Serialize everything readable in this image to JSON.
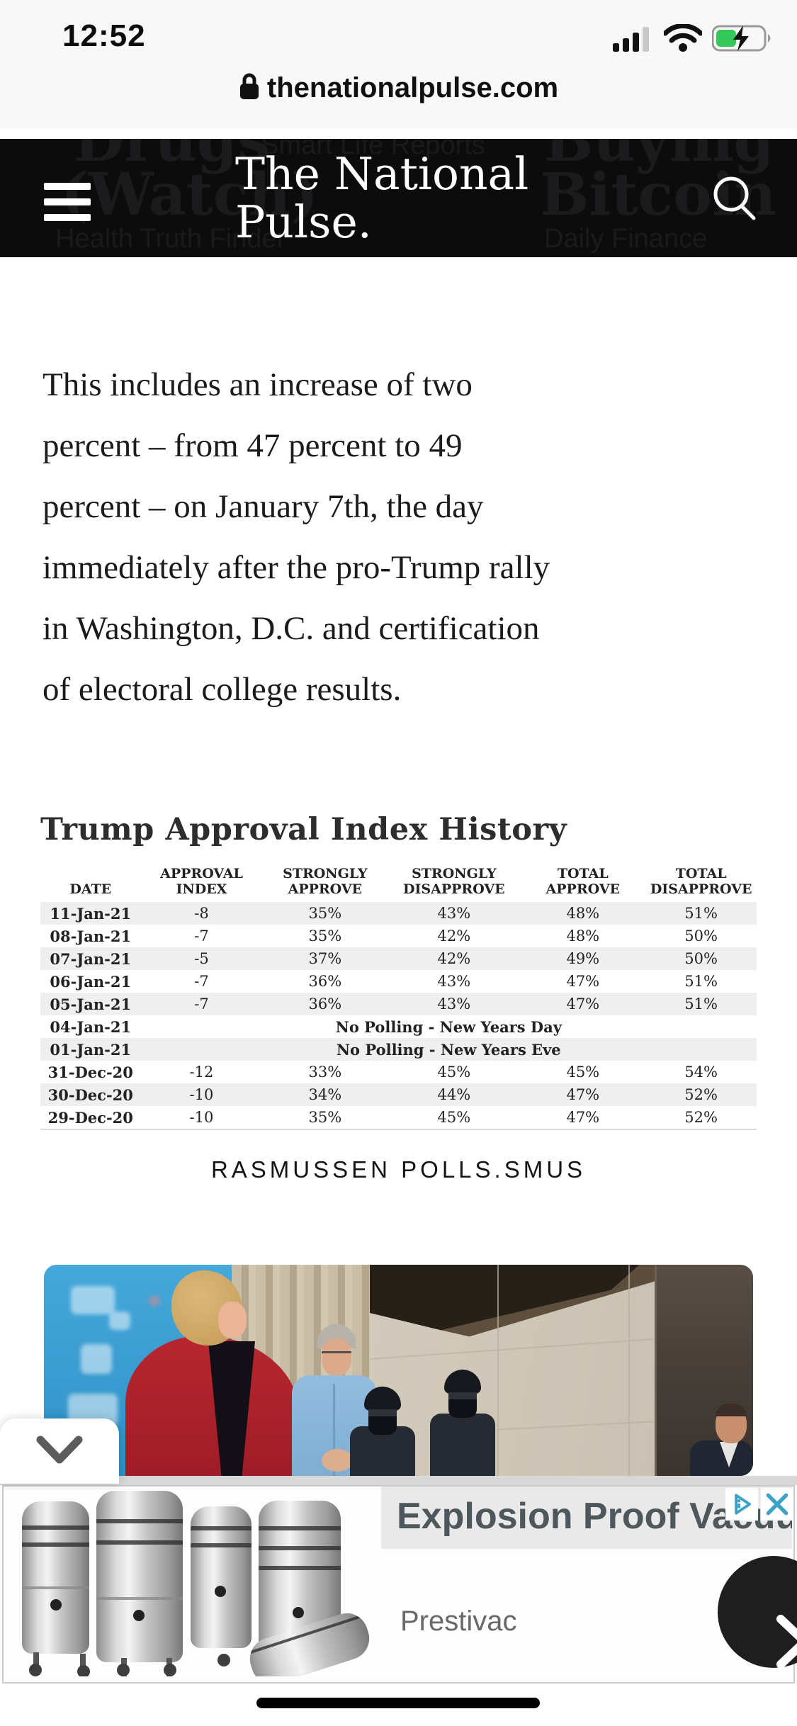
{
  "status_bar": {
    "time": "12:52"
  },
  "url_bar": {
    "domain": "thenationalpulse.com"
  },
  "header": {
    "title_line1": "The National",
    "title_line2": "Pulse.",
    "background_items": {
      "drugs": "Drugs",
      "watch": "(Watch)",
      "smart": "Smart Life Reports",
      "buying": "Buying",
      "bitcoin": "Bitcoin",
      "health": "Health Truth Finder",
      "daily": "Daily Finance"
    }
  },
  "article": {
    "lines": [
      "This includes an increase of two",
      "percent – from 47 percent to 49",
      "percent – on January 7th, the day",
      "immediately after the pro-Trump rally",
      "in Washington, D.C. and certification",
      "of electoral college results."
    ]
  },
  "poll_table": {
    "title": "Trump Approval Index History",
    "columns": [
      "DATE",
      "APPROVAL INDEX",
      "STRONGLY APPROVE",
      "STRONGLY DISAPPROVE",
      "TOTAL APPROVE",
      "TOTAL DISAPPROVE"
    ],
    "rows": [
      {
        "date": "11-Jan-21",
        "values": [
          "-8",
          "35%",
          "43%",
          "48%",
          "51%"
        ]
      },
      {
        "date": "08-Jan-21",
        "values": [
          "-7",
          "35%",
          "42%",
          "48%",
          "50%"
        ]
      },
      {
        "date": "07-Jan-21",
        "values": [
          "-5",
          "37%",
          "42%",
          "49%",
          "50%"
        ]
      },
      {
        "date": "06-Jan-21",
        "values": [
          "-7",
          "36%",
          "43%",
          "47%",
          "51%"
        ]
      },
      {
        "date": "05-Jan-21",
        "values": [
          "-7",
          "36%",
          "43%",
          "47%",
          "51%"
        ]
      },
      {
        "date": "04-Jan-21",
        "note": "No Polling - New Years Day"
      },
      {
        "date": "01-Jan-21",
        "note": "No Polling - New Years Eve"
      },
      {
        "date": "31-Dec-20",
        "values": [
          "-12",
          "33%",
          "45%",
          "45%",
          "54%"
        ]
      },
      {
        "date": "30-Dec-20",
        "values": [
          "-10",
          "34%",
          "44%",
          "47%",
          "52%"
        ]
      },
      {
        "date": "29-Dec-20",
        "values": [
          "-10",
          "35%",
          "45%",
          "47%",
          "52%"
        ]
      }
    ],
    "source_caption": "RASMUSSEN POLLS.SMUS"
  },
  "ad": {
    "headline": "Explosion Proof Vacuum",
    "advertiser": "Prestivac"
  },
  "icons": {
    "status": [
      "cellular-signal-icon",
      "wifi-icon",
      "battery-charging-icon"
    ],
    "url_bar": [
      "lock-icon"
    ],
    "header": [
      "menu-icon",
      "search-icon"
    ],
    "collapse": [
      "chevron-down-icon"
    ],
    "ad": [
      "adchoices-icon",
      "close-icon",
      "chevron-right-icon"
    ]
  },
  "colors": {
    "header_bg": "#0c0c0d",
    "battery_charge_green": "#34c759",
    "table_band": "#efefef",
    "adchoices_blue": "#3ba2c8",
    "photo_backdrop_blue": "#3aa0d4",
    "photo_blazer_red": "#b02530"
  }
}
